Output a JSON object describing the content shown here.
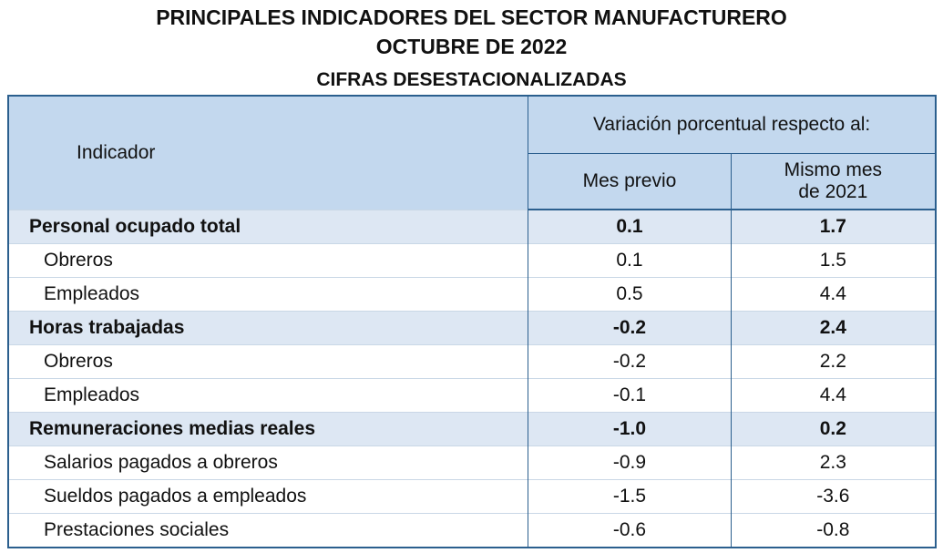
{
  "header": {
    "title": "PRINCIPALES INDICADORES DEL SECTOR MANUFACTURERO",
    "period": "OCTUBRE DE 2022",
    "subtitle": "CIFRAS DESESTACIONALIZADAS"
  },
  "table": {
    "columns": {
      "indicator": "Indicador",
      "variation": "Variación porcentual respecto al:",
      "previous": "Mes previo",
      "same_month": "Mismo mes de 2021"
    },
    "rows": [
      {
        "label": "Personal ocupado total",
        "bold": true,
        "previous": "0.1",
        "same_month": "1.7"
      },
      {
        "label": "Obreros",
        "bold": false,
        "previous": "0.1",
        "same_month": "1.5"
      },
      {
        "label": "Empleados",
        "bold": false,
        "previous": "0.5",
        "same_month": "4.4"
      },
      {
        "label": "Horas trabajadas",
        "bold": true,
        "previous": "-0.2",
        "same_month": "2.4"
      },
      {
        "label": "Obreros",
        "bold": false,
        "previous": "-0.2",
        "same_month": "2.2"
      },
      {
        "label": "Empleados",
        "bold": false,
        "previous": "-0.1",
        "same_month": "4.4"
      },
      {
        "label": "Remuneraciones medias reales",
        "bold": true,
        "previous": "-1.0",
        "same_month": "0.2"
      },
      {
        "label": "Salarios pagados a obreros",
        "bold": false,
        "previous": "-0.9",
        "same_month": "2.3"
      },
      {
        "label": "Sueldos pagados a empleados",
        "bold": false,
        "previous": "-1.5",
        "same_month": "-3.6"
      },
      {
        "label": "Prestaciones sociales",
        "bold": false,
        "previous": "-0.6",
        "same_month": "-0.8"
      }
    ]
  }
}
